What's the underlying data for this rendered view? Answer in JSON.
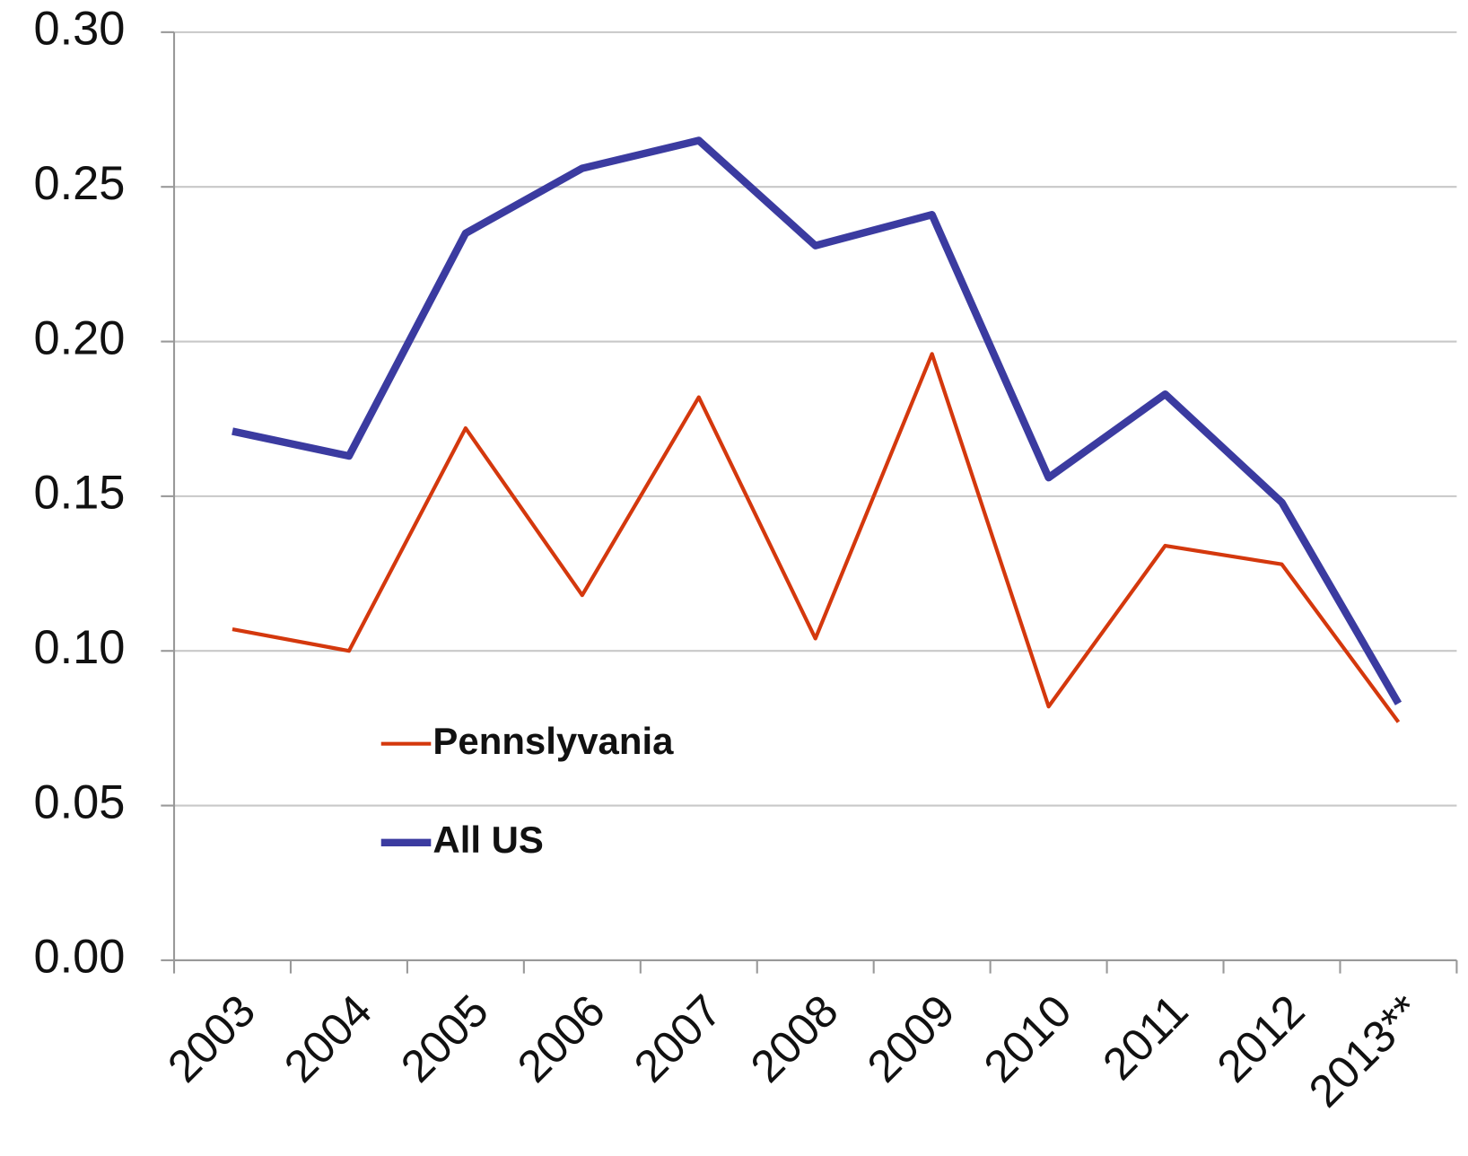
{
  "chart_data": {
    "type": "line",
    "categories": [
      "2003",
      "2004",
      "2005",
      "2006",
      "2007",
      "2008",
      "2009",
      "2010",
      "2011",
      "2012",
      "2013**"
    ],
    "series": [
      {
        "name": "Pennslyvania",
        "color": "#d4380d",
        "values": [
          0.107,
          0.1,
          0.172,
          0.118,
          0.182,
          0.104,
          0.196,
          0.082,
          0.134,
          0.128,
          0.077
        ]
      },
      {
        "name": "All US",
        "color": "#3b3ba0",
        "values": [
          0.171,
          0.163,
          0.235,
          0.256,
          0.265,
          0.231,
          0.241,
          0.156,
          0.183,
          0.148,
          0.083
        ]
      }
    ],
    "ylim": [
      0,
      0.3
    ],
    "yticks": [
      {
        "value": 0,
        "label": "0.00"
      },
      {
        "value": 0.05,
        "label": "0.05"
      },
      {
        "value": 0.1,
        "label": "0.10"
      },
      {
        "value": 0.15,
        "label": "0.15"
      },
      {
        "value": 0.2,
        "label": "0.20"
      },
      {
        "value": 0.25,
        "label": "0.25"
      },
      {
        "value": 0.3,
        "label": "0.30"
      }
    ],
    "grid": true,
    "legend": "left"
  }
}
